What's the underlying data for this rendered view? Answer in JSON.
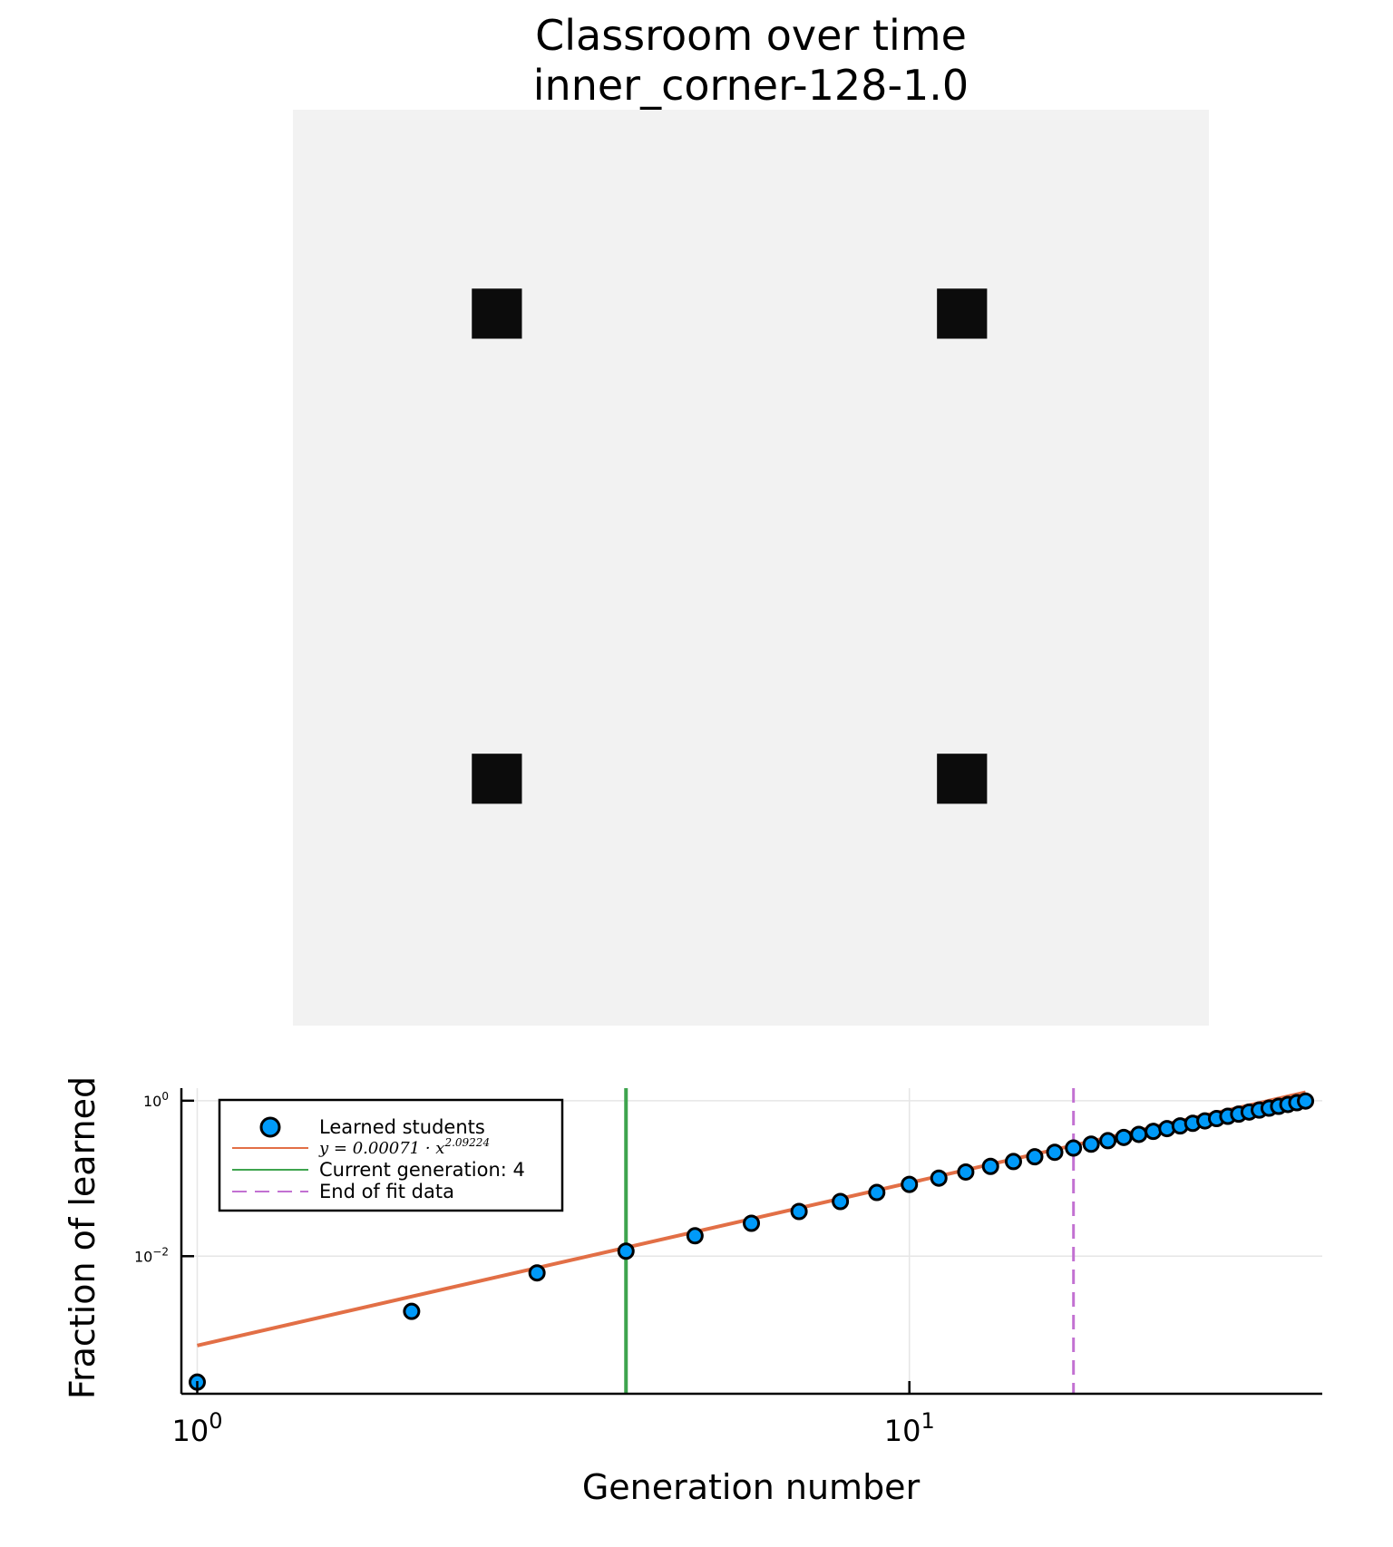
{
  "title_line1": "Classroom over time",
  "title_line2": "inner_corner-128-1.0",
  "classroom": {
    "background_color": "#f2f2f2",
    "marker_color": "#0c0c0c",
    "grid_size": 128,
    "learned_cells": [
      [
        28,
        28
      ],
      [
        93,
        28
      ],
      [
        28,
        93
      ],
      [
        93,
        93
      ]
    ]
  },
  "chart_data": {
    "type": "scatter",
    "xlabel": "Generation number",
    "ylabel": "Fraction of learned",
    "x_scale": "log10",
    "y_scale": "log10",
    "xlim": [
      0.95,
      38
    ],
    "ylim": [
      0.00017,
      1.45
    ],
    "x_ticks": [
      {
        "value": 1,
        "base": "10",
        "exp": "0"
      },
      {
        "value": 10,
        "base": "10",
        "exp": "1"
      }
    ],
    "y_ticks": [
      {
        "value": 1,
        "base": "10",
        "exp": "0"
      },
      {
        "value": 0.01,
        "base": "10",
        "exp": "−2"
      }
    ],
    "grid": true,
    "legend_position": "top-left",
    "series": [
      {
        "name": "Learned students",
        "kind": "scatter",
        "color": "#009af9",
        "x": [
          1,
          2,
          3,
          4,
          5,
          6,
          7,
          8,
          9,
          10,
          11,
          12,
          13,
          14,
          15,
          16,
          17,
          18,
          19,
          20,
          21,
          22,
          23,
          24,
          25,
          26,
          27,
          28,
          29,
          30,
          31,
          32,
          33,
          34,
          35,
          36
        ],
        "y": [
          0.00024,
          0.00195,
          0.0061,
          0.0116,
          0.0183,
          0.0265,
          0.0376,
          0.0505,
          0.066,
          0.0838,
          0.101,
          0.121,
          0.143,
          0.165,
          0.19,
          0.217,
          0.246,
          0.276,
          0.306,
          0.337,
          0.369,
          0.403,
          0.438,
          0.474,
          0.512,
          0.55,
          0.589,
          0.63,
          0.672,
          0.715,
          0.758,
          0.802,
          0.848,
          0.895,
          0.944,
          0.99
        ]
      },
      {
        "name": "y = 0.00071 · x^2.09224",
        "name_prefix": "y = 0.00071 · x",
        "name_exponent": "2.09224",
        "kind": "fit",
        "color": "#e26f46",
        "coefficient": 0.00071,
        "exponent": 2.09224,
        "x_range": [
          1,
          36
        ]
      },
      {
        "name": "Current generation: 4",
        "kind": "vline",
        "color": "#3ea44e",
        "x": 4
      },
      {
        "name": "End of fit data",
        "kind": "vline-dashed",
        "color": "#c271d2",
        "x": 17
      }
    ]
  }
}
